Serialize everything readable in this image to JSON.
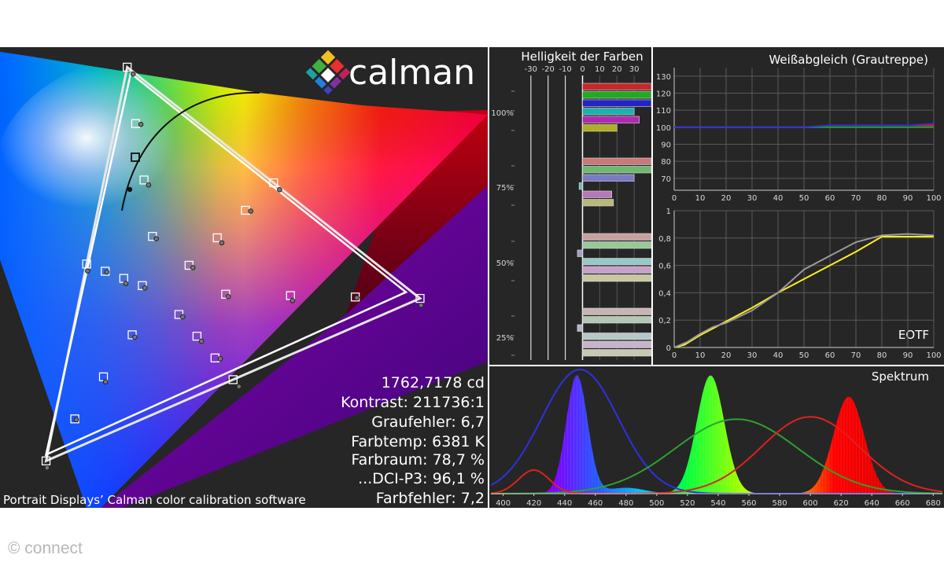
{
  "logo": {
    "text": "calman"
  },
  "stats": {
    "luminance": "1762,7178 cd",
    "contrast": "Kontrast: 211736:1",
    "gray_error": "Graufehler: 6,7",
    "color_temp": "Farbtemp: 6381 K",
    "color_space": "Farbraum: 78,7 %",
    "dci": "...DCI-P3: 96,1 %",
    "color_error": "Farbfehler: 7,2"
  },
  "caption": "Portrait Displays’ Calman color calibration software",
  "watermark": "© connect",
  "chart_data": [
    {
      "id": "gamut",
      "type": "scatter",
      "title": "",
      "target_triangle": [
        [
          0.68,
          0.32
        ],
        [
          0.265,
          0.69
        ],
        [
          0.15,
          0.06
        ]
      ],
      "measured_triangle": [
        [
          0.66,
          0.33
        ],
        [
          0.27,
          0.68
        ],
        [
          0.15,
          0.07
        ]
      ],
      "white_point": [
        0.3127,
        0.329
      ]
    },
    {
      "id": "brightness",
      "type": "bar",
      "title": "Helligkeit der Farben",
      "x_ticks": [
        "-30",
        "-20",
        "-10",
        "0",
        "10",
        "20",
        "30"
      ],
      "xlim": [
        -40,
        40
      ],
      "level_labels": [
        "100%",
        "75%",
        "50%",
        "25%"
      ],
      "groups": [
        {
          "level": "100%",
          "values": [
            40,
            40,
            40,
            30,
            33,
            20
          ],
          "colors": [
            "#c52828",
            "#23a823",
            "#2323c8",
            "#20b0b0",
            "#b028b0",
            "#b0b020"
          ]
        },
        {
          "level": "75%",
          "values": [
            40,
            40,
            30,
            -2,
            17,
            18
          ],
          "colors": [
            "#c87a7a",
            "#70b870",
            "#7a7ac8",
            "#70b8b8",
            "#b878b8",
            "#b8b878"
          ]
        },
        {
          "level": "50%",
          "values": [
            40,
            40,
            -3,
            40,
            40,
            40
          ],
          "colors": [
            "#c8a0a0",
            "#98c898",
            "#a0a0c8",
            "#98c8c8",
            "#c8a0c8",
            "#c8c8a0"
          ]
        },
        {
          "level": "25%",
          "values": [
            40,
            40,
            -3,
            40,
            40,
            40
          ],
          "colors": [
            "#c8b4b4",
            "#b4c8b4",
            "#b4b4c8",
            "#b4c8c8",
            "#c8b4c8",
            "#c8c8b4"
          ]
        }
      ]
    },
    {
      "id": "greyscale",
      "type": "line",
      "title": "Weißabgleich (Grautreppe)",
      "x": [
        0,
        10,
        20,
        30,
        40,
        50,
        60,
        70,
        80,
        90,
        100
      ],
      "x_ticks": [
        "0",
        "10",
        "20",
        "30",
        "40",
        "50",
        "60",
        "70",
        "80",
        "90",
        "100"
      ],
      "y_ticks": [
        "70",
        "80",
        "90",
        "100",
        "110",
        "120",
        "130"
      ],
      "xlim": [
        0,
        100
      ],
      "ylim": [
        63,
        135
      ],
      "series": [
        {
          "color": "#e02020",
          "values": [
            100,
            100,
            100,
            100,
            100,
            100,
            101,
            101,
            101,
            101,
            101
          ]
        },
        {
          "color": "#20a020",
          "values": [
            100,
            100,
            100,
            100,
            100,
            100,
            100,
            100,
            100,
            100,
            100
          ]
        },
        {
          "color": "#3030e0",
          "values": [
            100,
            100,
            100,
            100,
            100,
            100,
            101,
            101,
            101,
            101,
            102
          ]
        }
      ]
    },
    {
      "id": "eotf",
      "type": "line",
      "title": "EOTF",
      "x_ticks": [
        "0",
        "10",
        "20",
        "30",
        "40",
        "50",
        "60",
        "70",
        "80",
        "90",
        "100"
      ],
      "y_ticks": [
        "0",
        "0,2",
        "0,4",
        "0,6",
        "0,8",
        "1"
      ],
      "xlim": [
        0,
        100
      ],
      "ylim": [
        0,
        1
      ],
      "series": [
        {
          "color": "#ffee20",
          "x": [
            0,
            4,
            10,
            20,
            30,
            40,
            50,
            60,
            70,
            80,
            90,
            100
          ],
          "values": [
            0.0,
            0.02,
            0.09,
            0.19,
            0.29,
            0.4,
            0.5,
            0.6,
            0.7,
            0.81,
            0.81,
            0.81
          ]
        },
        {
          "color": "#9a9a9a",
          "x": [
            0,
            5,
            10,
            15,
            20,
            30,
            40,
            50,
            60,
            70,
            80,
            90,
            100
          ],
          "values": [
            0.0,
            0.04,
            0.1,
            0.15,
            0.18,
            0.27,
            0.4,
            0.57,
            0.67,
            0.77,
            0.82,
            0.83,
            0.82
          ]
        }
      ]
    },
    {
      "id": "spectrum",
      "type": "area",
      "title": "Spektrum",
      "x_ticks": [
        "400",
        "420",
        "440",
        "460",
        "480",
        "500",
        "520",
        "540",
        "560",
        "580",
        "600",
        "620",
        "640",
        "660",
        "680"
      ],
      "xlim": [
        392,
        686
      ],
      "peaks": [
        {
          "center": 448,
          "width": 7,
          "height": 1.0
        },
        {
          "center": 535,
          "width": 9,
          "height": 1.0
        },
        {
          "center": 625,
          "width": 10,
          "height": 0.82
        }
      ],
      "series": [
        {
          "color": "#3030e0",
          "center": 450,
          "width": 25,
          "height": 1.05
        },
        {
          "color": "#30a030",
          "center": 552,
          "width": 40,
          "height": 0.63
        },
        {
          "color": "#e02020",
          "center": 600,
          "width": 32,
          "height": 0.65
        }
      ]
    }
  ]
}
